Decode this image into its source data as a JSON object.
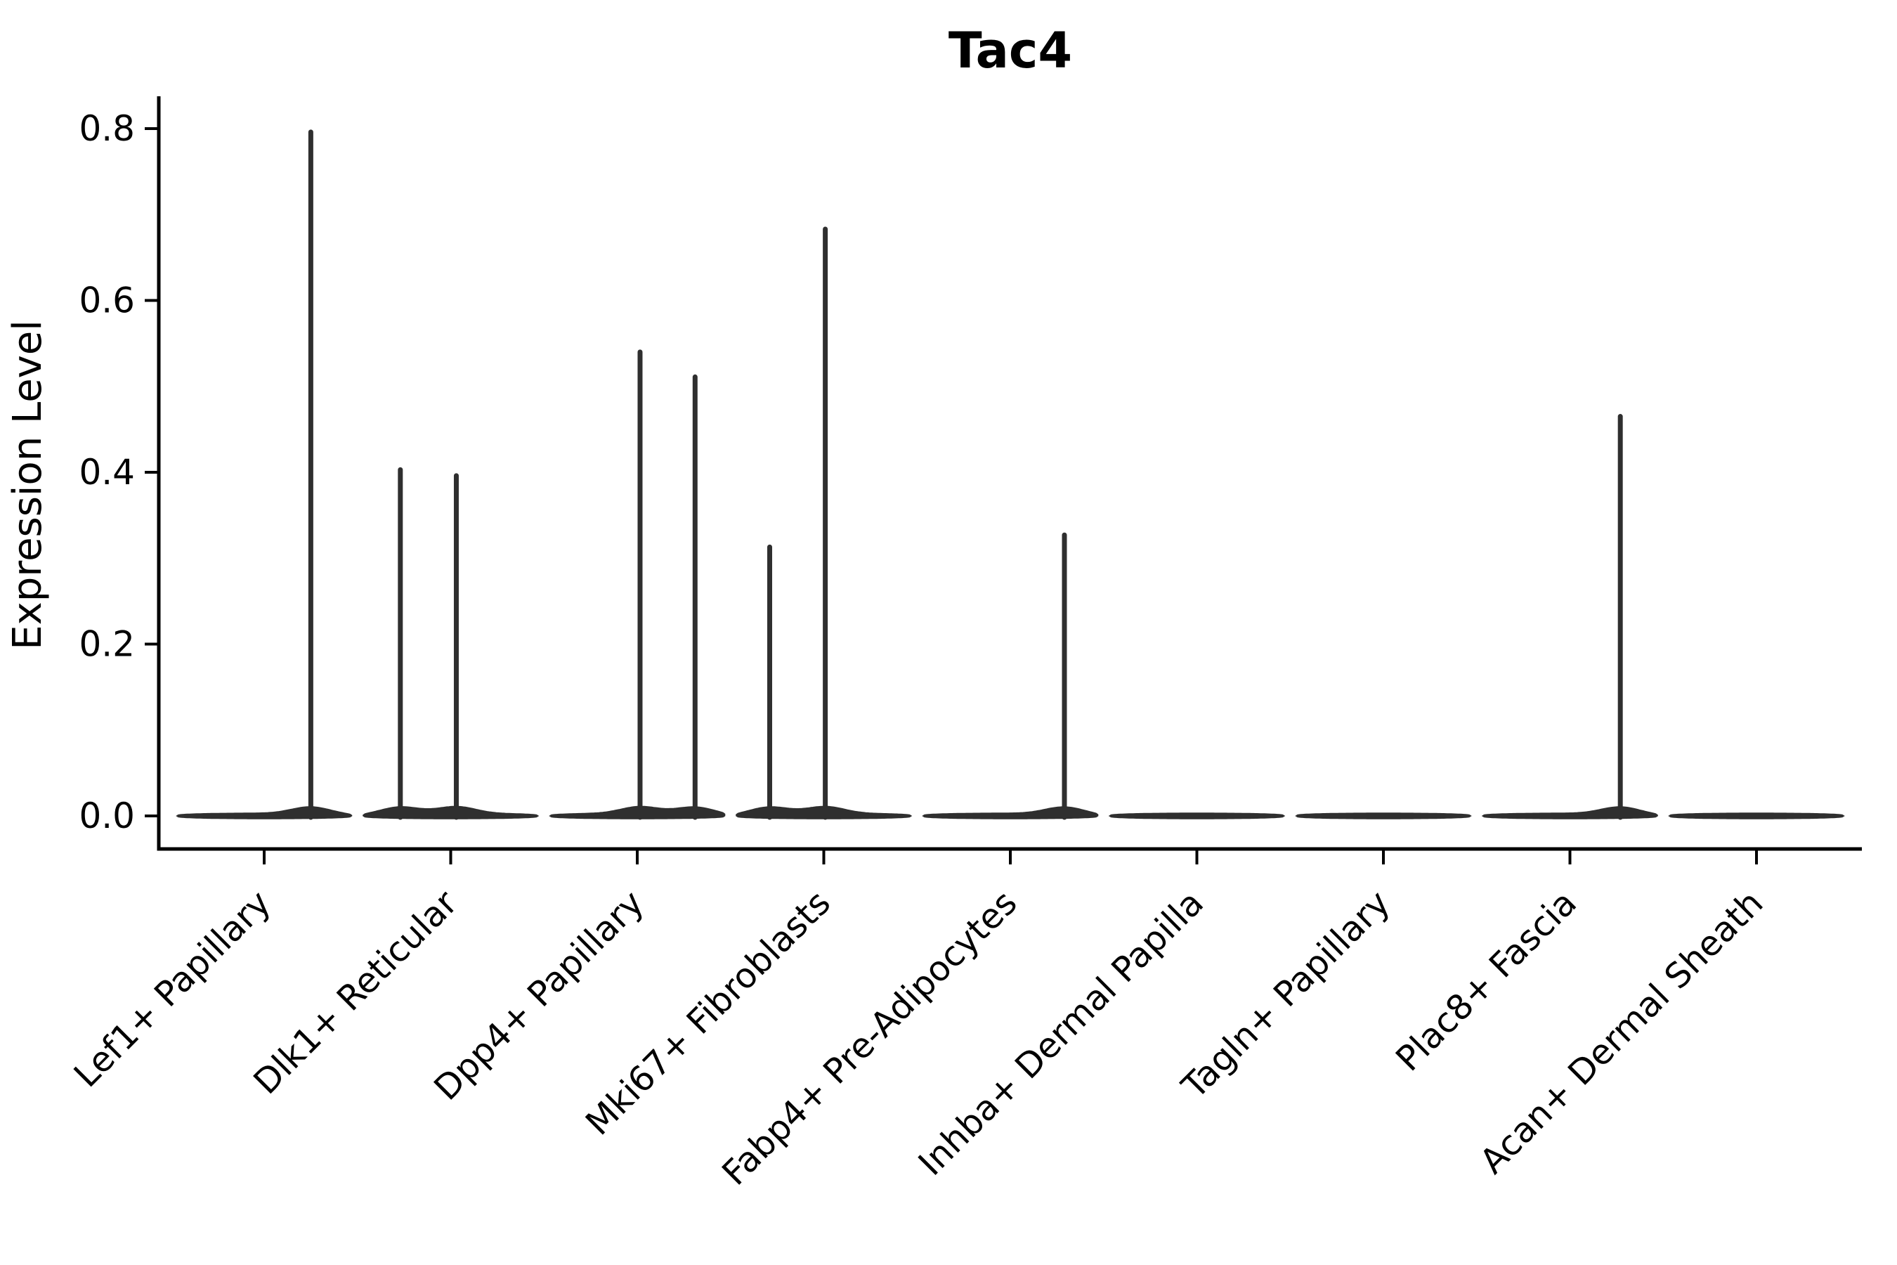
{
  "title": "Tac4",
  "ylabel": "Expression Level",
  "chart_data": {
    "type": "violin",
    "title": "Tac4",
    "xlabel": "",
    "ylabel": "Expression Level",
    "ylim": [
      -0.04,
      0.84
    ],
    "yticks": [
      0.0,
      0.2,
      0.4,
      0.6,
      0.8
    ],
    "grid": false,
    "legend": "none",
    "violin_color": "#2f2f2f",
    "axis_color": "#000000",
    "categories": [
      "Lef1+ Papillary",
      "Dlk1+ Reticular",
      "Dpp4+ Papillary",
      "Mki67+ Fibroblasts",
      "Fabp4+ Pre-Adipocytes",
      "Inhba+ Dermal Papilla",
      "Tagln+ Papillary",
      "Plac8+ Fascia",
      "Acan+ Dermal Sheath"
    ],
    "body_halfwidth": 0.47,
    "violins": [
      {
        "category": "Lef1+ Papillary",
        "base_value": 0.0,
        "spikes": [
          {
            "offset": 0.25,
            "value": 0.796
          }
        ]
      },
      {
        "category": "Dlk1+ Reticular",
        "base_value": 0.0,
        "spikes": [
          {
            "offset": -0.27,
            "value": 0.403
          },
          {
            "offset": 0.03,
            "value": 0.396
          }
        ]
      },
      {
        "category": "Dpp4+ Papillary",
        "base_value": 0.0,
        "spikes": [
          {
            "offset": 0.015,
            "value": 0.54
          },
          {
            "offset": 0.31,
            "value": 0.511
          }
        ]
      },
      {
        "category": "Mki67+ Fibroblasts",
        "base_value": 0.0,
        "spikes": [
          {
            "offset": -0.29,
            "value": 0.313
          },
          {
            "offset": 0.008,
            "value": 0.683
          }
        ]
      },
      {
        "category": "Fabp4+ Pre-Adipocytes",
        "base_value": 0.0,
        "spikes": [
          {
            "offset": 0.29,
            "value": 0.327
          }
        ]
      },
      {
        "category": "Inhba+ Dermal Papilla",
        "base_value": 0.0,
        "spikes": []
      },
      {
        "category": "Tagln+ Papillary",
        "base_value": 0.0,
        "spikes": []
      },
      {
        "category": "Plac8+ Fascia",
        "base_value": 0.0,
        "spikes": [
          {
            "offset": 0.27,
            "value": 0.465
          }
        ]
      },
      {
        "category": "Acan+ Dermal Sheath",
        "base_value": 0.0,
        "spikes": []
      }
    ]
  }
}
